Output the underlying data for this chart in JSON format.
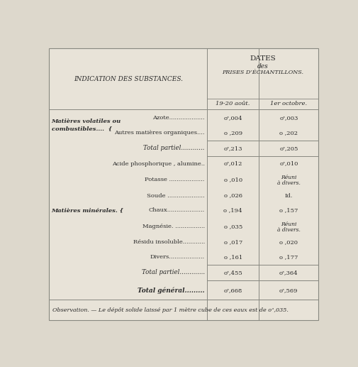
{
  "bg_color": "#ddd8cc",
  "table_bg": "#e8e3d8",
  "header1": "INDICATION DES SUBSTANCES.",
  "header2": "DATES",
  "header3": "des",
  "header4": "PRISES D’ÉCHANTILLONS.",
  "col1_header": "19-20 août.",
  "col2_header": "1er octobre.",
  "rows": [
    {
      "substance": "Azote...................",
      "val1": "oᶟ,004",
      "val2": "oᶟ,003",
      "val2b": "",
      "is_total": false,
      "is_grand_total": false,
      "row_type": "normal"
    },
    {
      "substance": "Autres matières organiques....",
      "val1": "o ,209",
      "val2": "o ,202",
      "val2b": "",
      "is_total": false,
      "is_grand_total": false,
      "row_type": "normal"
    },
    {
      "substance": "Total partiel............",
      "val1": "oᶟ,213",
      "val2": "oᶟ,205",
      "val2b": "",
      "is_total": true,
      "is_grand_total": false,
      "row_type": "total"
    },
    {
      "substance": "Acide phosphorique , alumine..",
      "val1": "oᶟ,012",
      "val2": "oᶟ,010",
      "val2b": "",
      "is_total": false,
      "is_grand_total": false,
      "row_type": "normal"
    },
    {
      "substance": "Potasse ...................",
      "val1": "o ,010",
      "val2": "Réuni",
      "val2b": "à divers.",
      "is_total": false,
      "is_grand_total": false,
      "row_type": "normal"
    },
    {
      "substance": "Soude ....................",
      "val1": "o ,026",
      "val2": "Id.",
      "val2b": "",
      "is_total": false,
      "is_grand_total": false,
      "row_type": "normal"
    },
    {
      "substance": "Chaux....................",
      "val1": "o ,194",
      "val2": "o ,157",
      "val2b": "",
      "is_total": false,
      "is_grand_total": false,
      "row_type": "normal"
    },
    {
      "substance": "Magnésie. ................",
      "val1": "o ,035",
      "val2": "Réuni",
      "val2b": "à divers.",
      "is_total": false,
      "is_grand_total": false,
      "row_type": "normal"
    },
    {
      "substance": "Résidu insoluble............",
      "val1": "o ,017",
      "val2": "o ,020",
      "val2b": "",
      "is_total": false,
      "is_grand_total": false,
      "row_type": "normal"
    },
    {
      "substance": "Divers...................",
      "val1": "o ,161",
      "val2": "o ,177",
      "val2b": "",
      "is_total": false,
      "is_grand_total": false,
      "row_type": "normal"
    },
    {
      "substance": "Total partiel.............",
      "val1": "oᶟ,455",
      "val2": "oᶟ,364",
      "val2b": "",
      "is_total": true,
      "is_grand_total": false,
      "row_type": "total"
    },
    {
      "substance": "Total général.........",
      "val1": "oᶟ,668",
      "val2": "oᶟ,569",
      "val2b": "",
      "is_total": false,
      "is_grand_total": true,
      "row_type": "grand_total"
    }
  ],
  "group1_line1": "Matières volatiles ou",
  "group1_line2": "combustibles....  {",
  "group2_label": "Matières minérales. {",
  "observation": "Observation. — Le dépôt solide laissé par 1 mètre cube de ces eaux est de oᶟ,035."
}
